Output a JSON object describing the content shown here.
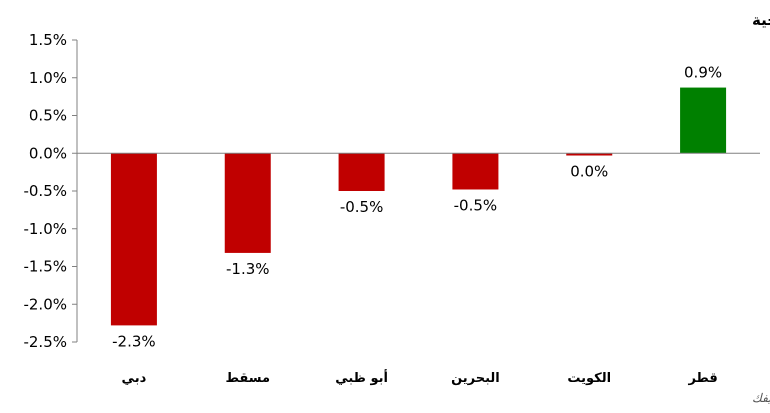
{
  "chart_data": {
    "type": "bar",
    "title": "التغير الأسبوعي لمؤشرات أسواق الأسهم الخليجية",
    "source": "المصدر: إدارة البحوث - كميفك",
    "categories": [
      "دبي",
      "مسقط",
      "أبو ظبي",
      "البحرين",
      "الكويت",
      "قطر"
    ],
    "values": [
      -2.28,
      -1.32,
      -0.5,
      -0.48,
      -0.03,
      0.87
    ],
    "data_labels": [
      "-2.3%",
      "-1.3%",
      "-0.5%",
      "-0.5%",
      "0.0%",
      "0.9%"
    ],
    "bar_colors": [
      "#c00000",
      "#c00000",
      "#c00000",
      "#c00000",
      "#c00000",
      "#008000"
    ],
    "y_ticks": [
      1.5,
      1.0,
      0.5,
      0.0,
      -0.5,
      -1.0,
      -1.5,
      -2.0,
      -2.5
    ],
    "y_tick_labels": [
      "1.5%",
      "1.0%",
      "0.5%",
      "0.0%",
      "-0.5%",
      "-1.0%",
      "-1.5%",
      "-2.0%",
      "-2.5%"
    ],
    "ylim": [
      -2.5,
      1.5
    ],
    "xlabel": "",
    "ylabel": "",
    "grid": false,
    "legend": "none"
  }
}
